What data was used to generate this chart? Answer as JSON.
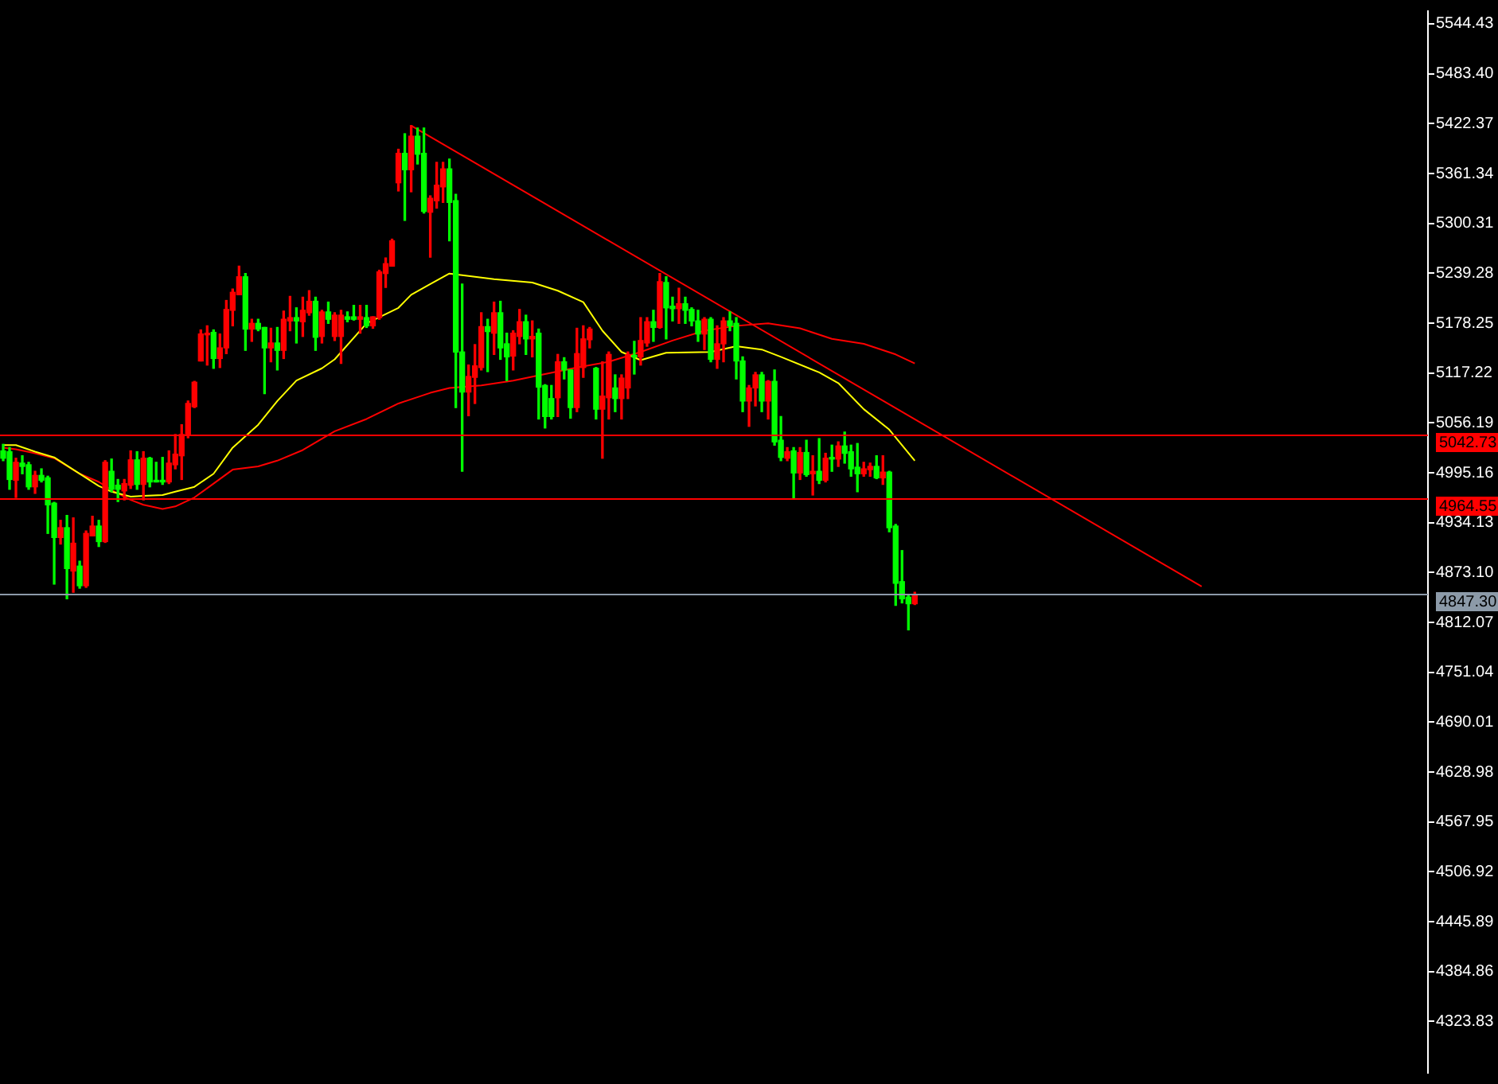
{
  "chart_data": {
    "type": "candlestick",
    "categories": [
      null,
      null,
      null,
      null,
      null,
      null,
      null,
      null,
      null,
      null,
      null,
      null,
      null,
      null,
      null,
      null,
      null,
      null,
      null,
      null,
      null,
      null,
      null,
      null,
      null,
      null,
      null,
      null,
      null,
      null,
      null,
      null,
      null,
      null,
      null,
      null,
      null,
      null,
      null,
      null,
      null,
      null,
      null,
      null,
      null,
      null,
      null,
      null,
      null,
      null,
      null,
      null,
      null,
      null,
      null,
      null,
      null,
      null,
      null,
      null,
      null,
      null,
      null,
      null,
      null,
      null,
      null,
      null,
      null,
      null,
      null,
      null,
      null,
      null,
      null,
      null,
      null,
      null,
      null,
      null,
      null,
      null,
      null,
      null,
      null,
      null,
      null,
      null,
      null,
      null,
      null,
      null,
      null,
      null,
      null,
      null,
      null,
      null,
      null,
      null,
      null,
      null,
      null,
      null,
      null,
      null,
      null,
      null,
      null,
      null,
      null,
      null,
      null,
      null,
      null,
      null,
      null,
      null,
      null,
      null,
      null,
      null,
      null,
      null,
      null,
      null,
      null,
      null,
      null,
      null,
      null,
      null,
      null,
      null,
      null,
      null,
      null,
      null,
      null,
      null,
      null,
      null,
      null,
      null,
      null,
      null,
      null,
      null,
      null,
      null,
      null,
      null,
      null,
      null,
      null,
      null,
      null,
      null,
      null,
      null,
      null,
      null,
      null,
      null,
      null,
      null,
      null,
      null,
      null,
      null,
      null,
      null,
      null,
      null,
      null,
      null,
      null,
      null,
      null,
      null,
      null,
      null,
      null,
      null,
      null,
      null,
      null,
      null,
      null,
      null,
      null,
      null,
      null,
      null,
      null,
      null,
      null,
      null,
      null,
      null,
      null,
      null,
      null,
      null,
      null,
      null,
      null,
      null,
      null,
      null,
      null,
      null,
      null,
      null,
      null,
      null,
      null,
      null,
      null,
      null,
      null,
      null,
      null,
      null
    ],
    "ohlc": [
      [
        5022,
        5030,
        5010,
        5013
      ],
      [
        5021,
        5026,
        4975,
        4987
      ],
      [
        4986,
        5013,
        4965,
        5008
      ],
      [
        5007,
        5016,
        4994,
        5003
      ],
      [
        5005,
        5008,
        4975,
        4978
      ],
      [
        4978,
        4997,
        4970,
        4992
      ],
      [
        4992,
        5000,
        4984,
        4986
      ],
      [
        4989,
        4991,
        4921,
        4956
      ],
      [
        4958,
        4959,
        4859,
        4916
      ],
      [
        4916,
        4937,
        4908,
        4928
      ],
      [
        4928,
        4943,
        4841,
        4878
      ],
      [
        4875,
        4940,
        4849,
        4909
      ],
      [
        4881,
        4887,
        4854,
        4857
      ],
      [
        4857,
        4924,
        4855,
        4921
      ],
      [
        4918,
        4942,
        4918,
        4930
      ],
      [
        4930,
        4937,
        4905,
        4911
      ],
      [
        4911,
        5010,
        4910,
        5008
      ],
      [
        4997,
        5012,
        4972,
        4975
      ],
      [
        4980,
        4987,
        4960,
        4975
      ],
      [
        4973,
        4987,
        4962,
        4982
      ],
      [
        4980,
        5022,
        4976,
        5011
      ],
      [
        5011,
        5021,
        4975,
        4981
      ],
      [
        4981,
        5021,
        4962,
        5013
      ],
      [
        5013,
        5014,
        4978,
        4984
      ],
      [
        4986,
        5008,
        4984,
        4984
      ],
      [
        4986,
        5014,
        4981,
        4984
      ],
      [
        4984,
        5022,
        4982,
        5007
      ],
      [
        5005,
        5042,
        5000,
        5018
      ],
      [
        5016,
        5054,
        4987,
        5042
      ],
      [
        5042,
        5083,
        5038,
        5080
      ],
      [
        5076,
        5107,
        5075,
        5106
      ],
      [
        5132,
        5170,
        5132,
        5165
      ],
      [
        5164,
        5175,
        5127,
        5165
      ],
      [
        5167,
        5170,
        5123,
        5135
      ],
      [
        5135,
        5165,
        5124,
        5148
      ],
      [
        5148,
        5206,
        5141,
        5195
      ],
      [
        5194,
        5220,
        5175,
        5216
      ],
      [
        5213,
        5248,
        5213,
        5235
      ],
      [
        5235,
        5239,
        5145,
        5171
      ],
      [
        5171,
        5183,
        5156,
        5178
      ],
      [
        5178,
        5183,
        5169,
        5171
      ],
      [
        5173,
        5173,
        5092,
        5148
      ],
      [
        5148,
        5172,
        5131,
        5154
      ],
      [
        5154,
        5173,
        5121,
        5145
      ],
      [
        5145,
        5193,
        5135,
        5183
      ],
      [
        5181,
        5211,
        5169,
        5185
      ],
      [
        5185,
        5197,
        5154,
        5181
      ],
      [
        5180,
        5210,
        5162,
        5194
      ],
      [
        5191,
        5218,
        5188,
        5205
      ],
      [
        5205,
        5210,
        5145,
        5161
      ],
      [
        5162,
        5194,
        5154,
        5192
      ],
      [
        5192,
        5204,
        5178,
        5183
      ],
      [
        5162,
        5191,
        5157,
        5188
      ],
      [
        5162,
        5194,
        5129,
        5188
      ],
      [
        5186,
        5192,
        5180,
        5183
      ],
      [
        5186,
        5200,
        5182,
        5183
      ],
      [
        5183,
        5200,
        5166,
        5186
      ],
      [
        5185,
        5200,
        5173,
        5175
      ],
      [
        5175,
        5186,
        5172,
        5186
      ],
      [
        5185,
        5243,
        5183,
        5241
      ],
      [
        5239,
        5258,
        5222,
        5251
      ],
      [
        5248,
        5281,
        5248,
        5279
      ],
      [
        5350,
        5391,
        5340,
        5386
      ],
      [
        5386,
        5410,
        5304,
        5366
      ],
      [
        5366,
        5420,
        5339,
        5407
      ],
      [
        5407,
        5417,
        5373,
        5385
      ],
      [
        5386,
        5417,
        5313,
        5315
      ],
      [
        5314,
        5334,
        5259,
        5331
      ],
      [
        5328,
        5375,
        5319,
        5347
      ],
      [
        5345,
        5375,
        5326,
        5367
      ],
      [
        5367,
        5379,
        5279,
        5326
      ],
      [
        5328,
        5336,
        5075,
        5143
      ],
      [
        5143,
        5226,
        4997,
        5094
      ],
      [
        5094,
        5127,
        5065,
        5113
      ],
      [
        5112,
        5152,
        5080,
        5126
      ],
      [
        5124,
        5191,
        5121,
        5174
      ],
      [
        5174,
        5183,
        5119,
        5168
      ],
      [
        5166,
        5204,
        5140,
        5191
      ],
      [
        5191,
        5205,
        5134,
        5148
      ],
      [
        5153,
        5166,
        5108,
        5137
      ],
      [
        5138,
        5169,
        5121,
        5166
      ],
      [
        5162,
        5195,
        5153,
        5180
      ],
      [
        5180,
        5188,
        5140,
        5159
      ],
      [
        5159,
        5181,
        5137,
        5162
      ],
      [
        5166,
        5171,
        5061,
        5100
      ],
      [
        5102,
        5103,
        5050,
        5064
      ],
      [
        5086,
        5102,
        5061,
        5064
      ],
      [
        5087,
        5140,
        5064,
        5131
      ],
      [
        5131,
        5136,
        5110,
        5121
      ],
      [
        5121,
        5121,
        5062,
        5075
      ],
      [
        5075,
        5172,
        5070,
        5141
      ],
      [
        5124,
        5175,
        5112,
        5159
      ],
      [
        5158,
        5173,
        5148,
        5171
      ],
      [
        5123,
        5124,
        5061,
        5073
      ],
      [
        5073,
        5131,
        5013,
        5089
      ],
      [
        5087,
        5143,
        5061,
        5140
      ],
      [
        5099,
        5115,
        5070,
        5086
      ],
      [
        5086,
        5115,
        5061,
        5111
      ],
      [
        5099,
        5143,
        5086,
        5140
      ],
      [
        5139,
        5156,
        5116,
        5137
      ],
      [
        5137,
        5185,
        5127,
        5157
      ],
      [
        5154,
        5185,
        5150,
        5180
      ],
      [
        5180,
        5194,
        5156,
        5173
      ],
      [
        5173,
        5239,
        5172,
        5229
      ],
      [
        5228,
        5235,
        5159,
        5197
      ],
      [
        5199,
        5210,
        5181,
        5196
      ],
      [
        5196,
        5221,
        5178,
        5202
      ],
      [
        5202,
        5210,
        5178,
        5194
      ],
      [
        5195,
        5197,
        5175,
        5181
      ],
      [
        5181,
        5194,
        5156,
        5165
      ],
      [
        5165,
        5185,
        5146,
        5183
      ],
      [
        5183,
        5185,
        5131,
        5134
      ],
      [
        5134,
        5175,
        5123,
        5153
      ],
      [
        5153,
        5185,
        5131,
        5181
      ],
      [
        5181,
        5192,
        5169,
        5175
      ],
      [
        5178,
        5185,
        5110,
        5132
      ],
      [
        5132,
        5137,
        5070,
        5083
      ],
      [
        5083,
        5102,
        5052,
        5099
      ],
      [
        5099,
        5118,
        5077,
        5115
      ],
      [
        5115,
        5118,
        5070,
        5083
      ],
      [
        5083,
        5108,
        5061,
        5107
      ],
      [
        5107,
        5121,
        5029,
        5033
      ],
      [
        5035,
        5064,
        5010,
        5014
      ],
      [
        5013,
        5026,
        5010,
        5021
      ],
      [
        5022,
        5026,
        4964,
        4995
      ],
      [
        4995,
        5026,
        4987,
        5020
      ],
      [
        5020,
        5035,
        4991,
        4993
      ],
      [
        4994,
        5016,
        4968,
        4997
      ],
      [
        4997,
        5037,
        4982,
        4986
      ],
      [
        4986,
        5019,
        4984,
        5013
      ],
      [
        5013,
        5029,
        4997,
        5012
      ],
      [
        5012,
        5033,
        5003,
        5028
      ],
      [
        5028,
        5045,
        5007,
        5019
      ],
      [
        5021,
        5029,
        4991,
        5000
      ],
      [
        5002,
        5031,
        4972,
        4994
      ],
      [
        4994,
        5008,
        4991,
        5000
      ],
      [
        4999,
        5007,
        4991,
        5003
      ],
      [
        5003,
        5016,
        4988,
        4989
      ],
      [
        4989,
        5016,
        4981,
        4996
      ],
      [
        4996,
        4997,
        4923,
        4928
      ],
      [
        4930,
        4932,
        4833,
        4860
      ],
      [
        4862,
        4900,
        4836,
        4841
      ],
      [
        4843,
        4846,
        4803,
        4835
      ],
      [
        4835,
        4849,
        4834,
        4846
      ],
      null,
      null,
      null,
      null,
      null,
      null,
      null,
      null,
      null,
      null,
      null,
      null,
      null,
      null,
      null,
      null,
      null,
      null,
      null,
      null,
      null,
      null,
      null,
      null,
      null,
      null,
      null,
      null,
      null,
      null,
      null,
      null,
      null,
      null,
      null,
      null,
      null,
      null,
      null,
      null,
      null,
      null,
      null,
      null,
      null,
      null,
      null,
      null,
      null,
      null,
      null,
      null,
      null,
      null,
      null,
      null,
      null,
      null,
      null,
      null,
      null,
      null,
      null,
      null,
      null,
      null,
      null,
      null,
      null,
      null,
      null,
      null,
      null,
      null,
      null,
      null,
      null,
      null,
      null,
      null
    ],
    "colors": [
      "#00ff00",
      "#00ff00",
      "#ff0000",
      "#00ff00",
      "#00ff00",
      "#ff0000",
      "#00ff00",
      "#00ff00",
      "#00ff00",
      "#ff0000",
      "#00ff00",
      "#ff0000",
      "#00ff00",
      "#ff0000",
      "#ff0000",
      "#00ff00",
      "#ff0000",
      "#00ff00",
      "#00ff00",
      "#ff0000",
      "#ff0000",
      "#00ff00",
      "#ff0000",
      "#00ff00",
      "#00ff00",
      "#00ff00",
      "#ff0000",
      "#ff0000",
      "#ff0000",
      "#ff0000",
      "#ff0000",
      "#ff0000",
      "#ff0000",
      "#00ff00",
      "#ff0000",
      "#ff0000",
      "#ff0000",
      "#ff0000",
      "#00ff00",
      "#ff0000",
      "#00ff00",
      "#00ff00",
      "#ff0000",
      "#00ff00",
      "#ff0000",
      "#ff0000",
      "#00ff00",
      "#ff0000",
      "#ff0000",
      "#00ff00",
      "#ff0000",
      "#00ff00",
      "#ff0000",
      "#ff0000",
      "#00ff00",
      "#00ff00",
      "#ff0000",
      "#00ff00",
      "#ff0000",
      "#ff0000",
      "#ff0000",
      "#ff0000",
      "#ff0000",
      "#00ff00",
      "#ff0000",
      "#00ff00",
      "#00ff00",
      "#ff0000",
      "#ff0000",
      "#ff0000",
      "#00ff00",
      "#00ff00",
      "#00ff00",
      "#ff0000",
      "#ff0000",
      "#ff0000",
      "#00ff00",
      "#ff0000",
      "#00ff00",
      "#00ff00",
      "#ff0000",
      "#ff0000",
      "#00ff00",
      "#ff0000",
      "#00ff00",
      "#00ff00",
      "#00ff00",
      "#ff0000",
      "#00ff00",
      "#00ff00",
      "#ff0000",
      "#ff0000",
      "#ff0000",
      "#00ff00",
      "#ff0000",
      "#ff0000",
      "#00ff00",
      "#ff0000",
      "#ff0000",
      "#00ff00",
      "#ff0000",
      "#ff0000",
      "#00ff00",
      "#ff0000",
      "#00ff00",
      "#00ff00",
      "#ff0000",
      "#00ff00",
      "#00ff00",
      "#00ff00",
      "#ff0000",
      "#00ff00",
      "#ff0000",
      "#ff0000",
      "#00ff00",
      "#00ff00",
      "#00ff00",
      "#ff0000",
      "#ff0000",
      "#00ff00",
      "#ff0000",
      "#00ff00",
      "#00ff00",
      "#ff0000",
      "#00ff00",
      "#ff0000",
      "#00ff00",
      "#ff0000",
      "#00ff00",
      "#ff0000",
      "#00ff00",
      "#ff0000",
      "#00ff00",
      "#00ff00",
      "#00ff00",
      "#ff0000",
      "#ff0000",
      "#00ff00",
      "#ff0000",
      "#00ff00",
      "#00ff00",
      "#00ff00",
      "#00ff00",
      "#ff0000",
      null,
      null,
      null,
      null,
      null,
      null,
      null,
      null,
      null,
      null,
      null,
      null,
      null,
      null,
      null,
      null,
      null,
      null,
      null,
      null,
      null,
      null,
      null,
      null,
      null,
      null,
      null,
      null,
      null,
      null,
      null,
      null,
      null,
      null,
      null,
      null,
      null,
      null,
      null,
      null,
      null,
      null,
      null,
      null,
      null,
      null,
      null,
      null,
      null,
      null,
      null,
      null,
      null,
      null,
      null,
      null,
      null,
      null,
      null,
      null,
      null,
      null,
      null,
      null,
      null,
      null,
      null,
      null,
      null,
      null,
      null,
      null,
      null,
      null,
      null,
      null,
      null,
      null,
      null,
      null
    ],
    "series": [
      {
        "type": "line",
        "color": "#ffff00",
        "values": [
          5029,
          null,
          5029,
          null,
          null,
          5021,
          null,
          null,
          5014,
          null,
          null,
          4999,
          null,
          null,
          null,
          4979,
          null,
          4972,
          null,
          null,
          4966,
          null,
          4967,
          null,
          null,
          4968,
          null,
          4972,
          null,
          null,
          4978,
          null,
          null,
          4994,
          null,
          null,
          5026,
          null,
          null,
          null,
          5054,
          null,
          null,
          5083,
          null,
          null,
          5108,
          null,
          null,
          null,
          5123,
          null,
          5134,
          null,
          null,
          null,
          null,
          5178,
          null,
          null,
          null,
          null,
          5197,
          null,
          5213,
          null,
          null,
          5226,
          null,
          null,
          5239,
          null,
          5237,
          null,
          null,
          null,
          null,
          5232,
          null,
          null,
          null,
          null,
          null,
          5228,
          null,
          null,
          null,
          5218,
          null,
          null,
          null,
          5204,
          null,
          null,
          5169,
          null,
          null,
          5143,
          null,
          null,
          5133,
          null,
          null,
          null,
          5142,
          null,
          null,
          null,
          null,
          null,
          null,
          5143,
          null,
          null,
          null,
          5150,
          null,
          null,
          null,
          5146,
          null,
          null,
          5137,
          null,
          null,
          null,
          null,
          null,
          5118,
          null,
          null,
          5105,
          null,
          null,
          null,
          5073,
          null,
          null,
          null,
          5048,
          null,
          null,
          null,
          5010,
          null,
          null,
          null,
          null,
          null,
          null,
          null,
          null,
          null,
          null,
          null,
          null,
          null,
          null,
          null,
          null,
          null,
          null,
          null,
          null,
          null,
          null,
          null,
          null,
          null,
          null,
          null,
          null,
          null,
          null,
          null,
          null,
          null,
          null,
          null,
          null,
          null,
          null,
          null,
          null,
          null,
          null,
          null,
          null,
          null,
          null,
          null,
          null,
          null,
          null,
          null,
          null,
          null,
          null,
          null,
          null,
          null,
          null,
          null,
          null,
          null,
          null,
          null,
          null,
          null,
          null,
          null,
          null,
          null,
          null,
          null,
          null,
          null,
          null,
          null,
          null,
          null,
          null,
          null,
          null
        ]
      },
      {
        "type": "line",
        "color": "#ff0000",
        "values": [
          5026,
          null,
          5024,
          null,
          null,
          5019,
          null,
          null,
          5013,
          null,
          null,
          null,
          4994,
          null,
          null,
          4984,
          null,
          4974,
          null,
          null,
          4962,
          null,
          4956,
          null,
          null,
          4951,
          null,
          4954,
          null,
          null,
          4965,
          null,
          null,
          4982,
          null,
          null,
          4999,
          null,
          null,
          null,
          5003,
          null,
          null,
          5010,
          null,
          null,
          null,
          5023,
          null,
          null,
          null,
          null,
          5046,
          null,
          null,
          null,
          null,
          5061,
          null,
          null,
          null,
          null,
          5080,
          null,
          null,
          null,
          null,
          5093,
          null,
          null,
          5099,
          null,
          null,
          null,
          null,
          5102,
          null,
          null,
          null,
          null,
          5108,
          null,
          null,
          null,
          null,
          5116,
          null,
          null,
          null,
          null,
          5124,
          null,
          null,
          null,
          null,
          5131,
          null,
          null,
          null,
          null,
          5143,
          null,
          null,
          null,
          null,
          5157,
          null,
          null,
          null,
          null,
          5169,
          null,
          null,
          null,
          null,
          5175,
          null,
          null,
          null,
          null,
          5178,
          null,
          null,
          null,
          null,
          5172,
          null,
          null,
          null,
          null,
          5159,
          null,
          null,
          null,
          null,
          5153,
          null,
          null,
          null,
          null,
          5140,
          null,
          null,
          5129,
          null,
          null,
          null,
          null,
          null,
          null,
          null,
          null,
          null,
          null,
          null,
          null,
          null,
          null,
          null,
          null,
          null,
          null,
          null,
          null,
          null,
          null,
          null,
          null,
          null,
          null,
          null,
          null,
          null,
          null,
          null,
          null,
          null,
          null,
          null,
          null,
          null,
          null,
          null,
          null,
          null,
          null,
          null,
          null,
          null,
          null,
          null,
          null,
          null,
          null,
          null,
          null,
          null,
          null,
          null,
          null,
          null,
          null,
          null,
          null,
          null,
          null,
          null,
          null,
          null,
          null,
          null,
          null,
          null,
          null,
          null,
          null,
          null,
          null,
          null,
          null,
          null,
          null,
          null,
          null
        ]
      },
      {
        "type": "line",
        "color": "#ff0000",
        "values": [
          null,
          null,
          null,
          null,
          null,
          null,
          null,
          null,
          null,
          null,
          null,
          null,
          null,
          null,
          null,
          null,
          null,
          null,
          null,
          null,
          null,
          null,
          null,
          null,
          null,
          null,
          null,
          null,
          null,
          null,
          null,
          null,
          null,
          null,
          null,
          null,
          null,
          null,
          null,
          null,
          null,
          null,
          null,
          null,
          null,
          null,
          null,
          null,
          null,
          null,
          null,
          null,
          null,
          null,
          null,
          null,
          null,
          null,
          null,
          null,
          null,
          null,
          null,
          null,
          5420,
          null,
          null,
          null,
          null,
          null,
          null,
          null,
          null,
          null,
          null,
          null,
          null,
          null,
          null,
          null,
          null,
          null,
          null,
          null,
          null,
          null,
          null,
          null,
          null,
          null,
          null,
          null,
          null,
          null,
          null,
          null,
          null,
          null,
          null,
          null,
          null,
          null,
          null,
          null,
          null,
          null,
          null,
          null,
          null,
          null,
          null,
          null,
          null,
          null,
          null,
          null,
          null,
          null,
          null,
          null,
          null,
          null,
          null,
          null,
          null,
          null,
          null,
          null,
          null,
          null,
          null,
          null,
          null,
          null,
          null,
          null,
          null,
          null,
          null,
          null,
          null,
          null,
          null,
          null,
          null,
          null,
          null,
          null,
          null,
          null,
          null,
          null,
          null,
          null,
          null,
          null,
          null,
          null,
          null,
          null,
          null,
          null,
          null,
          null,
          null,
          null,
          null,
          null,
          null,
          null,
          null,
          null,
          null,
          null,
          null,
          null,
          null,
          null,
          null,
          null,
          null,
          null,
          null,
          null,
          null,
          null,
          null,
          null,
          4856,
          null,
          null,
          null,
          null,
          null,
          null,
          null,
          null,
          null,
          null,
          null,
          null,
          null,
          null,
          null,
          null,
          null,
          null,
          null,
          null,
          null,
          null,
          null,
          null,
          null,
          null,
          null,
          null,
          null,
          null,
          null,
          null,
          null,
          null,
          null
        ]
      }
    ],
    "ylim": [
      4261,
      5560
    ],
    "yticks": [
      5544.43,
      {
        "value": 5483.4,
        "label": "5483.40"
      },
      5422.37,
      5361.34,
      5300.31,
      5239.28,
      5178.25,
      5117.22,
      5056.19,
      4995.16,
      4934.13,
      {
        "value": 4873.1,
        "label": "4873.10"
      },
      4812.07,
      4751.04,
      4690.01,
      4628.98,
      4567.95,
      4506.92,
      4445.89,
      4384.86,
      4323.83
    ],
    "ref_lines": [
      {
        "axis": "y",
        "value": 5042.73,
        "label": "5042.73",
        "color": "#ff0000"
      },
      {
        "axis": "y",
        "value": 4964.55,
        "label": "4964.55",
        "color": "#ff0000"
      },
      {
        "axis": "y",
        "value": 4847.3,
        "label": "4847.30",
        "color": "#8c9aa8"
      }
    ],
    "tick_labels": "y",
    "legend": false,
    "marker": "none",
    "line_style": "solid"
  }
}
